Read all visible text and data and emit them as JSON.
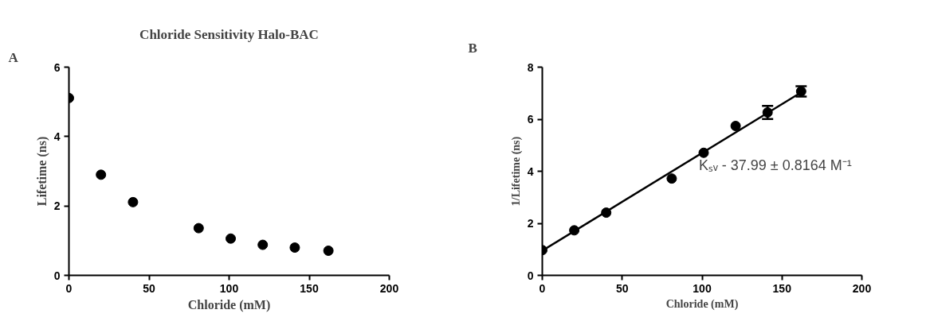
{
  "chart_data": [
    {
      "type": "scatter",
      "title": "Chloride Sensitivity Halo-BAC",
      "xlabel": "Chloride (mM)",
      "ylabel": "Lifetime (ns)",
      "annotations": [
        "A"
      ],
      "x": [
        0,
        20,
        40,
        81,
        101,
        121,
        141,
        162
      ],
      "series": [
        {
          "color": "#000000",
          "values": [
            5.11,
            2.9,
            2.11,
            1.36,
            1.06,
            0.88,
            0.8,
            0.71
          ]
        }
      ],
      "xlim": [
        0,
        200
      ],
      "ylim": [
        0,
        6
      ],
      "xticks": [
        0,
        50,
        100,
        150,
        200
      ],
      "yticks": [
        0,
        2,
        4,
        6
      ],
      "marker": "circle",
      "grid": false
    },
    {
      "type": "scatter",
      "xlabel": "Chloride (mM)",
      "ylabel": "1/Lifetime (ns)",
      "annotations": [
        "B",
        "Kₛᵥ - 37.99 ± 0.8164 M⁻¹"
      ],
      "x": [
        0,
        20,
        40,
        81,
        101,
        121,
        141,
        162
      ],
      "series": [
        {
          "color": "#000000",
          "values": [
            0.97,
            1.73,
            2.41,
            3.72,
            4.71,
            5.74,
            6.26,
            7.07
          ],
          "errors": [
            null,
            null,
            null,
            null,
            null,
            null,
            0.25,
            0.2
          ],
          "marker": "circle"
        },
        {
          "type": "line",
          "color": "#000000",
          "x": [
            0,
            162
          ],
          "values": [
            0.95,
            7.03
          ],
          "line_style": "solid",
          "marker": "none"
        }
      ],
      "xlim": [
        0,
        200
      ],
      "ylim": [
        0,
        8
      ],
      "xticks": [
        0,
        50,
        100,
        150,
        200
      ],
      "yticks": [
        0,
        2,
        4,
        6,
        8
      ],
      "grid": false
    }
  ]
}
